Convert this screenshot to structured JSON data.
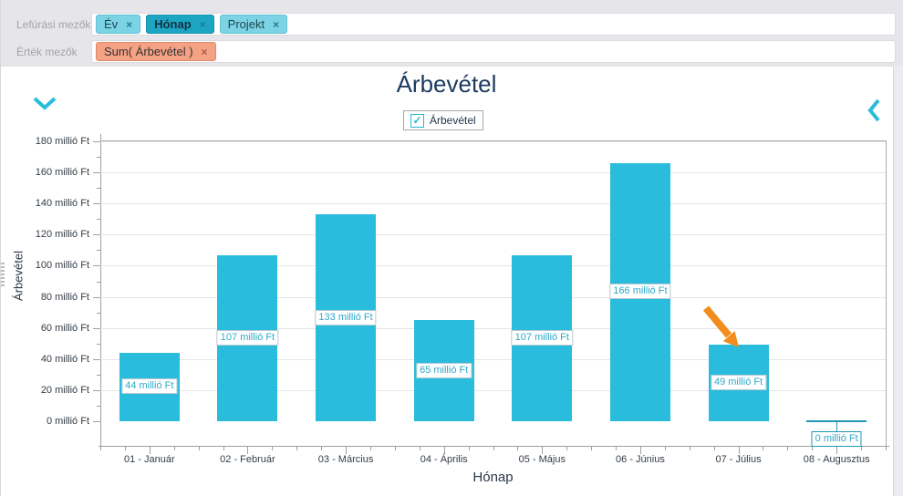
{
  "header": {
    "drill_label": "Lefúrási mezők",
    "value_label": "Érték mezők",
    "drill_fields": [
      {
        "label": "Év",
        "remove_icon": "×",
        "selected": false
      },
      {
        "label": "Hónap",
        "remove_icon": "×",
        "selected": true
      },
      {
        "label": "Projekt",
        "remove_icon": "×",
        "selected": false
      }
    ],
    "value_fields": [
      {
        "label": "Sum( Árbevétel )",
        "remove_icon": "×"
      }
    ]
  },
  "chart": {
    "title": "Árbevétel",
    "legend": {
      "label": "Árbevétel",
      "checked": true,
      "checkmark": "✓"
    }
  },
  "chart_data": {
    "type": "bar",
    "title": "Árbevétel",
    "categories": [
      "01 - Január",
      "02 - Február",
      "03 - Március",
      "04 - Április",
      "05 - Május",
      "06 - Június",
      "07 - Július",
      "08 - Augusztus"
    ],
    "series": [
      {
        "name": "Árbevétel",
        "values": [
          44,
          107,
          133,
          65,
          107,
          166,
          49,
          0
        ],
        "color": "#29BCDC"
      }
    ],
    "data_labels": [
      "44 millió Ft",
      "107 millió Ft",
      "133 millió Ft",
      "65 millió Ft",
      "107 millió Ft",
      "166 millió Ft",
      "49 millió Ft",
      "0 millió Ft"
    ],
    "xlabel": "Hónap",
    "ylabel": "Árbevétel",
    "ylim": [
      0,
      180
    ],
    "ytick_step": 20,
    "ytick_suffix": " millió Ft",
    "ytick_labels": [
      "0 millió Ft",
      "20 millió Ft",
      "40 millió Ft",
      "60 millió Ft",
      "80 millió Ft",
      "100 millió Ft",
      "120 millió Ft",
      "140 millió Ft",
      "160 millió Ft",
      "180 millió Ft"
    ],
    "grid": true,
    "legend_position": "top",
    "annotation": {
      "type": "arrow",
      "target_category": "07 - Július",
      "target_value": 49,
      "color": "#F28C1E"
    }
  },
  "colors": {
    "bar": "#29BCDC",
    "accent": "#29BCDC",
    "chip": "#7CD3E3",
    "chip_selected": "#1CA6C4",
    "value_chip": "#F5A184",
    "arrow": "#F28C1E",
    "title_text": "#1B3A5F",
    "header_bg": "#E6E6EA"
  }
}
